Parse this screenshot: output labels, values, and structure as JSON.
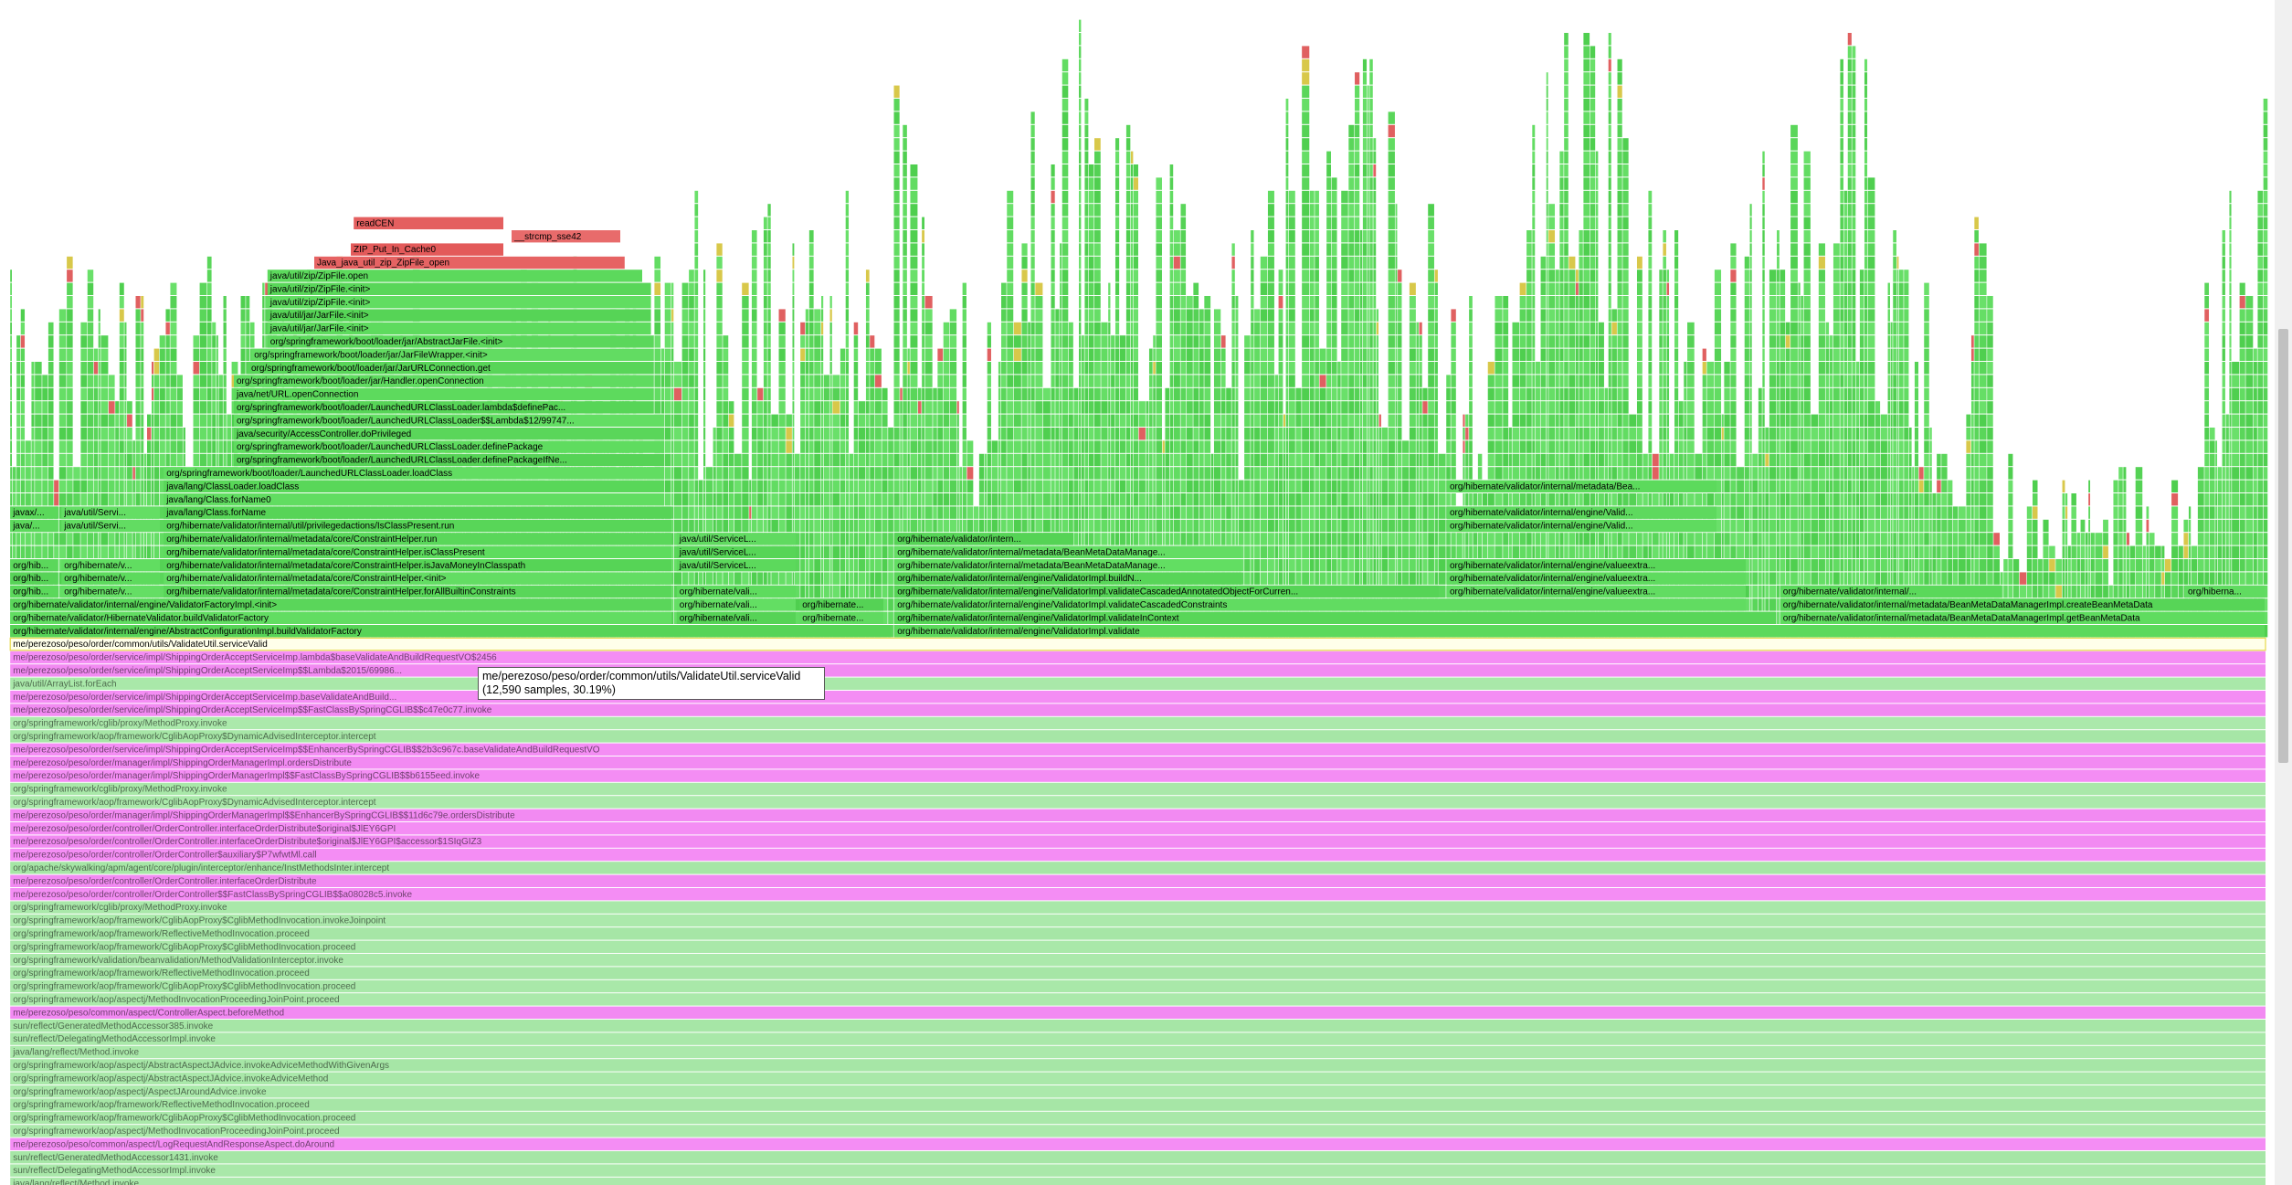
{
  "frames": [
    {
      "label": "org/hibernate/validator/internal/engine/AbstractConfigurationImpl.buildValidatorFactory",
      "color": "#57d457"
    },
    {
      "label": "org/hibernate/validator/internal/engine/ValidatorImpl.validate",
      "color": "#5cd95c"
    },
    {
      "label": "org/hibernate/validator/HibernateValidator.buildValidatorFactory",
      "color": "#62dd62"
    },
    {
      "label": "org/hibernate/vali...",
      "color": "#56d356"
    },
    {
      "label": "org/hibernate...",
      "color": "#60da60"
    },
    {
      "label": "org/hibernate/validator/internal/engine/ValidatorImpl.validateInContext",
      "color": "#58d658"
    },
    {
      "label": "org/hibernate/validator/internal/metadata/BeanMetaDataManagerImpl.getBeanMetaData",
      "color": "#5fdc5f"
    },
    {
      "label": "org/hibernate/validator/internal/engine/ValidatorFactoryImpl.<init>",
      "color": "#5ad65a"
    },
    {
      "label": "org/hibernate/vali...",
      "color": "#63de63"
    },
    {
      "label": "org/hibernate...",
      "color": "#55d255"
    },
    {
      "label": "org/hibernate/validator/internal/engine/ValidatorImpl.validateCascadedConstraints",
      "color": "#61dc61"
    },
    {
      "label": "org/hibernate/validator/internal/metadata/BeanMetaDataManagerImpl.createBeanMetaData",
      "color": "#57d557"
    },
    {
      "label": "org/hib...",
      "color": "#5bd85b"
    },
    {
      "label": "org/hibernate/v...",
      "color": "#64de64"
    },
    {
      "label": "org/hibernate/validator/internal/metadata/core/ConstraintHelper.forAllBuiltinConstraints",
      "color": "#59d659"
    },
    {
      "label": "org/hibernate/vali...",
      "color": "#5edb5e"
    },
    {
      "label": "org/hibernate/validator/internal/engine/ValidatorImpl.validateCascadedAnnotatedObjectForCurren...",
      "color": "#56d456"
    },
    {
      "label": "org/hibernate/validator/internal/engine/valueextra...",
      "color": "#62dc62"
    },
    {
      "label": "org/hibernate/validator/internal/...",
      "color": "#5ad85a"
    },
    {
      "label": "org/hiberna...",
      "color": "#60db60"
    },
    {
      "label": "org/hib...",
      "color": "#57d357"
    },
    {
      "label": "org/hibernate/v...",
      "color": "#5dda5d"
    },
    {
      "label": "org/hibernate/validator/internal/metadata/core/ConstraintHelper.<init>",
      "color": "#63dd63"
    },
    {
      "label": "org/hibernate/validator/internal/engine/ValidatorImpl.buildN...",
      "color": "#58d558"
    },
    {
      "label": "org/hibernate/validator/internal/engine/valueextra...",
      "color": "#5fdb5f"
    },
    {
      "label": "org/hib...",
      "color": "#5bd75b"
    },
    {
      "label": "org/hibernate/v...",
      "color": "#61dd61"
    },
    {
      "label": "org/hibernate/validator/internal/metadata/core/ConstraintHelper.isJavaMoneyInClasspath",
      "color": "#56d456"
    },
    {
      "label": "java/util/ServiceL...",
      "color": "#5cd95c"
    },
    {
      "label": "org/hibernate/validator/internal/metadata/BeanMetaDataManage...",
      "color": "#62de62"
    },
    {
      "label": "org/hibernate/validator/internal/engine/valueextra...",
      "color": "#59d659"
    },
    {
      "label": "org/hibernate/validator/internal/metadata/core/ConstraintHelper.isClassPresent",
      "color": "#5edc5e"
    },
    {
      "label": "java/util/ServiceL...",
      "color": "#57d557"
    },
    {
      "label": "org/hibernate/validator/internal/metadata/BeanMetaDataManage...",
      "color": "#63dd63"
    },
    {
      "label": "org/hibernate/validator/internal/metadata/core/ConstraintHelper.run",
      "color": "#5ad75a"
    },
    {
      "label": "java/util/ServiceL...",
      "color": "#60da60"
    },
    {
      "label": "org/hibernate/validator/intern...",
      "color": "#55d355"
    },
    {
      "label": "java/...",
      "color": "#5dd95d"
    },
    {
      "label": "java/util/Servi...",
      "color": "#62dc62"
    },
    {
      "label": "org/hibernate/validator/internal/util/privilegedactions/IsClassPresent.run",
      "color": "#58d658"
    },
    {
      "label": "org/hibernate/validator/internal/engine/Valid...",
      "color": "#5fdb5f"
    },
    {
      "label": "javax/...",
      "color": "#5bd85b"
    },
    {
      "label": "java/util/Servi...",
      "color": "#64de64"
    },
    {
      "label": "java/lang/Class.forName",
      "color": "#57d457"
    },
    {
      "label": "org/hibernate/validator/internal/engine/Valid...",
      "color": "#5ed95e"
    },
    {
      "label": "java/lang/Class.forName0",
      "color": "#61dd61"
    },
    {
      "label": "java/lang/ClassLoader.loadClass",
      "color": "#59d759"
    },
    {
      "label": "org/hibernate/validator/internal/metadata/Bea...",
      "color": "#5cda5c"
    },
    {
      "label": "org/springframework/boot/loader/LaunchedURLClassLoader.loadClass",
      "color": "#62dd62"
    },
    {
      "label": "org/springframework/boot/loader/LaunchedURLClassLoader.definePackageIfNe...",
      "color": "#56d356"
    },
    {
      "label": "org/springframework/boot/loader/LaunchedURLClassLoader.definePackage",
      "color": "#5fdc5f"
    },
    {
      "label": "java/security/AccessController.doPrivileged",
      "color": "#5ad65a"
    },
    {
      "label": "org/springframework/boot/loader/LaunchedURLClassLoader$$Lambda$12/99747...",
      "color": "#63de63"
    },
    {
      "label": "org/springframework/boot/loader/LaunchedURLClassLoader.lambda$definePac...",
      "color": "#57d557"
    },
    {
      "label": "java/net/URL.openConnection",
      "color": "#5dda5d"
    },
    {
      "label": "org/springframework/boot/loader/jar/Handler.openConnection",
      "color": "#60db60"
    },
    {
      "label": "org/springframework/boot/loader/jar/JarURLConnection.get",
      "color": "#58d558"
    },
    {
      "label": "org/springframework/boot/loader/jar/JarFileWrapper.<init>",
      "color": "#62dc62"
    },
    {
      "label": "org/springframework/boot/loader/jar/AbstractJarFile.<init>",
      "color": "#5bd75b"
    },
    {
      "label": "java/util/jar/JarFile.<init>",
      "color": "#5edb5e"
    },
    {
      "label": "java/util/jar/JarFile.<init>",
      "color": "#56d456"
    },
    {
      "label": "java/util/zip/ZipFile.<init>",
      "color": "#61dd61"
    },
    {
      "label": "java/util/zip/ZipFile.<init>",
      "color": "#59d659"
    },
    {
      "label": "java/util/zip/ZipFile.open",
      "color": "#5cd95c"
    },
    {
      "label": "Java_java_util_zip_ZipFile_open",
      "color": "#e66363"
    },
    {
      "label": "ZIP_Put_In_Cache0",
      "color": "#e35a5a"
    },
    {
      "label": "__strcmp_sse42",
      "color": "#e86b6b"
    },
    {
      "label": "readCEN",
      "color": "#e45f5f"
    }
  ],
  "stack": [
    {
      "label": "me/perezoso/peso/order/common/utils/ValidateUtil.serviceValid",
      "color": "#ffffea"
    },
    {
      "label": "me/perezoso/peso/order/service/impl/ShippingOrderAcceptServiceImp.lambda$baseValidateAndBuildRequestVO$2456",
      "color": "#f48df4"
    },
    {
      "label": "me/perezoso/peso/order/service/impl/ShippingOrderAcceptServiceImp$$Lambda$2015/69986...",
      "color": "#f28af2"
    },
    {
      "label": "java/util/ArrayList.forEach",
      "color": "#a9e8a9"
    },
    {
      "label": "me/perezoso/peso/order/service/impl/ShippingOrderAcceptServiceImp.baseValidateAndBuild...",
      "color": "#f48df4"
    },
    {
      "label": "me/perezoso/peso/order/service/impl/ShippingOrderAcceptServiceImp$$FastClassBySpringCGLIB$$c47e0c77.invoke",
      "color": "#f28af2"
    },
    {
      "label": "org/springframework/cglib/proxy/MethodProxy.invoke",
      "color": "#abe9ab"
    },
    {
      "label": "org/springframework/aop/framework/CglibAopProxy$DynamicAdvisedInterceptor.intercept",
      "color": "#a6e6a6"
    },
    {
      "label": "me/perezoso/peso/order/service/impl/ShippingOrderAcceptServiceImp$$EnhancerBySpringCGLIB$$2b3c967c.baseValidateAndBuildRequestVO",
      "color": "#f48df4"
    },
    {
      "label": "me/perezoso/peso/order/manager/impl/ShippingOrderManagerImpl.ordersDistribute",
      "color": "#f28af2"
    },
    {
      "label": "me/perezoso/peso/order/manager/impl/ShippingOrderManagerImpl$$FastClassBySpringCGLIB$$b6155eed.invoke",
      "color": "#f48df4"
    },
    {
      "label": "org/springframework/cglib/proxy/MethodProxy.invoke",
      "color": "#a9e8a9"
    },
    {
      "label": "org/springframework/aop/framework/CglibAopProxy$DynamicAdvisedInterceptor.intercept",
      "color": "#abe9ab"
    },
    {
      "label": "me/perezoso/peso/order/manager/impl/ShippingOrderManagerImpl$$EnhancerBySpringCGLIB$$11d6c79e.ordersDistribute",
      "color": "#f28af2"
    },
    {
      "label": "me/perezoso/peso/order/controller/OrderController.interfaceOrderDistribute$original$JlEY6GPI",
      "color": "#f48df4"
    },
    {
      "label": "me/perezoso/peso/order/controller/OrderController.interfaceOrderDistribute$original$JlEY6GPI$accessor$1SIqGIZ3",
      "color": "#f28af2"
    },
    {
      "label": "me/perezoso/peso/order/controller/OrderController$auxiliary$P7wfwtMl.call",
      "color": "#f48df4"
    },
    {
      "label": "org/apache/skywalking/apm/agent/core/plugin/interceptor/enhance/InstMethodsInter.intercept",
      "color": "#a6e6a6"
    },
    {
      "label": "me/perezoso/peso/order/controller/OrderController.interfaceOrderDistribute",
      "color": "#f28af2"
    },
    {
      "label": "me/perezoso/peso/order/controller/OrderController$$FastClassBySpringCGLIB$$a08028c5.invoke",
      "color": "#f48df4"
    },
    {
      "label": "org/springframework/cglib/proxy/MethodProxy.invoke",
      "color": "#a9e8a9"
    },
    {
      "label": "org/springframework/aop/framework/CglibAopProxy$CglibMethodInvocation.invokeJoinpoint",
      "color": "#abe9ab"
    },
    {
      "label": "org/springframework/aop/framework/ReflectiveMethodInvocation.proceed",
      "color": "#a6e6a6"
    },
    {
      "label": "org/springframework/aop/framework/CglibAopProxy$CglibMethodInvocation.proceed",
      "color": "#a9e8a9"
    },
    {
      "label": "org/springframework/validation/beanvalidation/MethodValidationInterceptor.invoke",
      "color": "#abe9ab"
    },
    {
      "label": "org/springframework/aop/framework/ReflectiveMethodInvocation.proceed",
      "color": "#a6e6a6"
    },
    {
      "label": "org/springframework/aop/framework/CglibAopProxy$CglibMethodInvocation.proceed",
      "color": "#a9e8a9"
    },
    {
      "label": "org/springframework/aop/aspectj/MethodInvocationProceedingJoinPoint.proceed",
      "color": "#abe9ab"
    },
    {
      "label": "me/perezoso/peso/common/aspect/ControllerAspect.beforeMethod",
      "color": "#f28af2"
    },
    {
      "label": "sun/reflect/GeneratedMethodAccessor385.invoke",
      "color": "#a6e6a6"
    },
    {
      "label": "sun/reflect/DelegatingMethodAccessorImpl.invoke",
      "color": "#a9e8a9"
    },
    {
      "label": "java/lang/reflect/Method.invoke",
      "color": "#abe9ab"
    },
    {
      "label": "org/springframework/aop/aspectj/AbstractAspectJAdvice.invokeAdviceMethodWithGivenArgs",
      "color": "#a6e6a6"
    },
    {
      "label": "org/springframework/aop/aspectj/AbstractAspectJAdvice.invokeAdviceMethod",
      "color": "#a9e8a9"
    },
    {
      "label": "org/springframework/aop/aspectj/AspectJAroundAdvice.invoke",
      "color": "#abe9ab"
    },
    {
      "label": "org/springframework/aop/framework/ReflectiveMethodInvocation.proceed",
      "color": "#a6e6a6"
    },
    {
      "label": "org/springframework/aop/framework/CglibAopProxy$CglibMethodInvocation.proceed",
      "color": "#a9e8a9"
    },
    {
      "label": "org/springframework/aop/aspectj/MethodInvocationProceedingJoinPoint.proceed",
      "color": "#abe9ab"
    },
    {
      "label": "me/perezoso/peso/common/aspect/LogRequestAndResponseAspect.doAround",
      "color": "#f48df4"
    },
    {
      "label": "sun/reflect/GeneratedMethodAccessor1431.invoke",
      "color": "#a6e6a6"
    },
    {
      "label": "sun/reflect/DelegatingMethodAccessorImpl.invoke",
      "color": "#a9e8a9"
    },
    {
      "label": "java/lang/reflect/Method.invoke",
      "color": "#abe9ab"
    }
  ],
  "tooltip": {
    "frame": "me/perezoso/peso/order/common/utils/ValidateUtil.serviceValid",
    "detail": "(12,590 samples, 30.19%)"
  }
}
